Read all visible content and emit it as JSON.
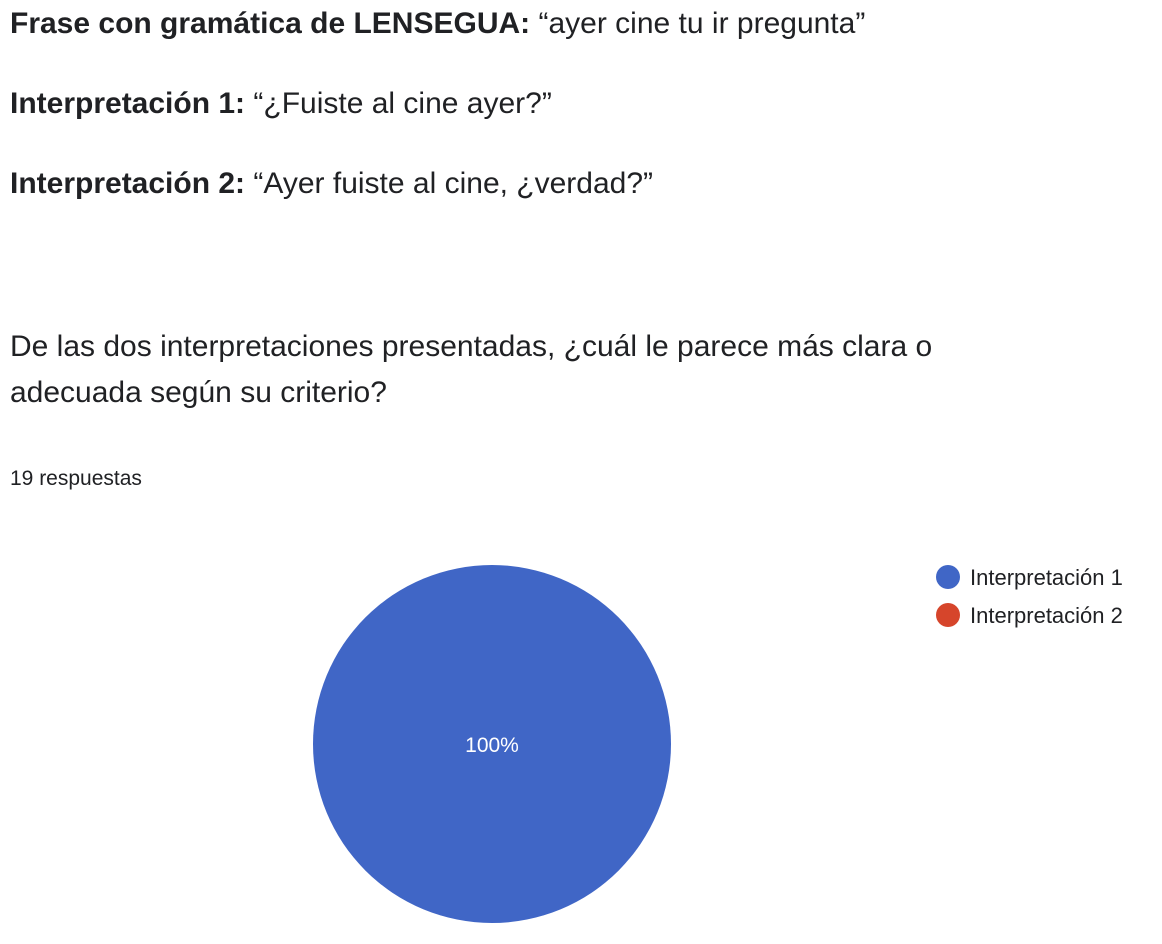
{
  "header": {
    "phrase_label": "Frase con gramática de LENSEGUA:",
    "phrase_value": "“ayer cine tu ir pregunta”",
    "interp1_label": "Interpretación 1:",
    "interp1_value": "“¿Fuiste al cine ayer?”",
    "interp2_label": "Interpretación 2:",
    "interp2_value": "“Ayer fuiste al cine, ¿verdad?”"
  },
  "question": {
    "text": "De las dos interpretaciones presentadas, ¿cuál le parece más clara o adecuada según su criterio?",
    "responses": "19 respuestas"
  },
  "chart_data": {
    "type": "pie",
    "categories": [
      "Interpretación 1",
      "Interpretación 2"
    ],
    "values": [
      100,
      0
    ],
    "slice_labels": [
      "100%",
      ""
    ],
    "colors": [
      "#4066c6",
      "#d6452b"
    ],
    "legend_position": "top-right"
  }
}
